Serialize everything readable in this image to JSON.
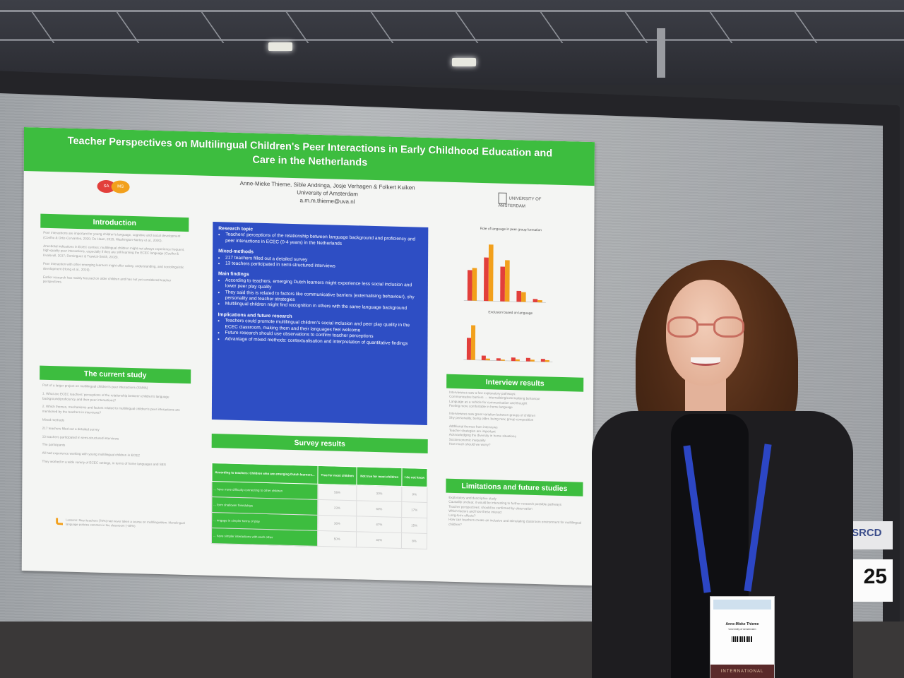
{
  "poster": {
    "title": "Teacher Perspectives on Multilingual Children's Peer Interactions in Early Childhood Education and Care in the Netherlands",
    "authors": "Anne-Mieke Thieme, Sible Andringa, Josje Verhagen & Folkert Kuiken",
    "affiliation": "University of Amsterdam",
    "email": "a.m.m.thieme@uva.nl",
    "logo_left_1": "SA",
    "logo_left_2": "MS",
    "uva_logo_text": "UNIVERSITY OF AMSTERDAM",
    "colors": {
      "green": "#3dbd3f",
      "blue": "#2e4ec4",
      "red": "#e23f3b",
      "orange": "#f2a01c"
    },
    "sections": {
      "introduction": "Introduction",
      "current_study": "The current study",
      "survey_results": "Survey results",
      "interview_results": "Interview results",
      "limitations": "Limitations and future studies"
    },
    "intro_text": [
      "Peer interactions are important for young children's language, cognitive and social development (Coelho & Ortiz-Cervantes, 2020; De Haan, 2015; Washington-Nortey et al., 2020).",
      "Anecdotal indications in ECEC centres: multilingual children might not always experience frequent, high-quality peer interactions, especially if they are still learning the ECEC language (Coelho & Kvalsvoll, 2017; Dominguez & Trawick-Smith, 2018).",
      "Peer interaction with other emerging learners might offer safety, understanding, and sociolinguistic development (Hong et al., 2019).",
      "Earlier research has mainly focused on older children and has not yet considered teacher perspectives."
    ],
    "study_text": [
      "Part of a larger project on multilingual children's peer interactions (SAMA)",
      "1. What are ECEC teachers' perceptions of the relationship between children's language background/proficiency and their peer interactions?",
      "2. Which themes, mechanisms and factors related to multilingual children's peer interactions are mentioned by the teachers in interviews?",
      "Mixed methods",
      "217 teachers filled out a detailed survey",
      "13 teachers participated in semi-structured interviews",
      "The participants",
      "All had experience working with young multilingual children in ECEC",
      "They worked in a wide variety of ECEC settings, in terms of home languages and SES"
    ],
    "note_text": "Lessons: Most teachers (70%) had never taken a course on multilingualism. Monolingual language policies common in the classroom (~80%)",
    "research_topic_head": "Research topic",
    "research_topic": "Teachers' perceptions of the relationship between language background and proficiency and peer interactions in ECEC (0-4 years) in the Netherlands",
    "methods_head": "Mixed-methods",
    "methods": [
      "217 teachers filled out a detailed survey",
      "13 teachers participated in semi-structured interviews"
    ],
    "findings_head": "Main findings",
    "findings": [
      "According to teachers, emerging Dutch learners might experience less social inclusion and lower peer play quality",
      "They said this is related to factors like communicative barriers (externalising behaviour), shy personality and teacher strategies",
      "Multilingual children might find recognition in others with the same language background"
    ],
    "implications_head": "Implications and future research",
    "implications": [
      "Teachers could promote multilingual children's social inclusion and peer play quality in the ECEC classroom, making them and their languages feel welcome",
      "Future research should use observations to confirm teacher perceptions",
      "Advantage of mixed methods: contextualisation and interpretation of quantitative findings"
    ],
    "survey": {
      "headers": [
        "According to teachers: Children who are emerging Dutch learners...",
        "True for most children",
        "Not true for most children",
        "I do not know"
      ],
      "rows": [
        [
          "... have more difficulty connecting to other children",
          "56%",
          "33%",
          "9%"
        ],
        [
          "... form shallower friendships",
          "23%",
          "60%",
          "17%"
        ],
        [
          "... engage in simpler forms of play",
          "36%",
          "47%",
          "15%"
        ],
        [
          "... have simpler interactions with each other",
          "50%",
          "43%",
          "8%"
        ]
      ]
    },
    "interview_text": [
      "Interviewees saw a few explanatory pathways:",
      "Communicative barriers → internalising/externalising behaviour",
      "Language as a vehicle for communication and thought",
      "Feeling more comfortable in home language",
      "Interviewees saw great variation between groups of children",
      "Shy personality, being older, being new, group composition",
      "Additional themes from interviews",
      "Teacher strategies are important",
      "Acknowledging the diversity in home situations",
      "Socioeconomic inequality",
      "How much should we worry?"
    ],
    "limitations_text": [
      "Exploratory and descriptive study",
      "Causality unclear, it would be interesting to further research possible pathways",
      "Teacher perspectives: should be confirmed by observation",
      "Which factors and how these interact",
      "Long-term effects?",
      "How can teachers create an inclusive and stimulating classroom environment for multilingual children?"
    ]
  },
  "chart_data": [
    {
      "type": "bar",
      "title": "Role of language in peer group formation",
      "categories": [
        "",
        "",
        "",
        "",
        ""
      ],
      "series": [
        {
          "name": "",
          "color": "#e23f3b",
          "values": [
            28,
            40,
            32,
            10,
            3
          ]
        },
        {
          "name": "",
          "color": "#f2a01c",
          "values": [
            30,
            52,
            38,
            9,
            2
          ]
        }
      ]
    },
    {
      "type": "bar",
      "title": "Exclusion based on language",
      "categories": [
        "",
        "",
        "",
        "",
        "",
        ""
      ],
      "series": [
        {
          "name": "",
          "color": "#e23f3b",
          "values": [
            38,
            8,
            4,
            6,
            6,
            5
          ]
        },
        {
          "name": "",
          "color": "#f2a01c",
          "values": [
            60,
            3,
            2,
            3,
            3,
            3
          ]
        }
      ]
    }
  ],
  "badge": {
    "name": "Anne-Mieke Thieme",
    "affiliation": "University of Amsterdam",
    "bottom_text": "INTERNATIONAL"
  },
  "board_sign": {
    "org": "SRCD",
    "number": "25"
  }
}
